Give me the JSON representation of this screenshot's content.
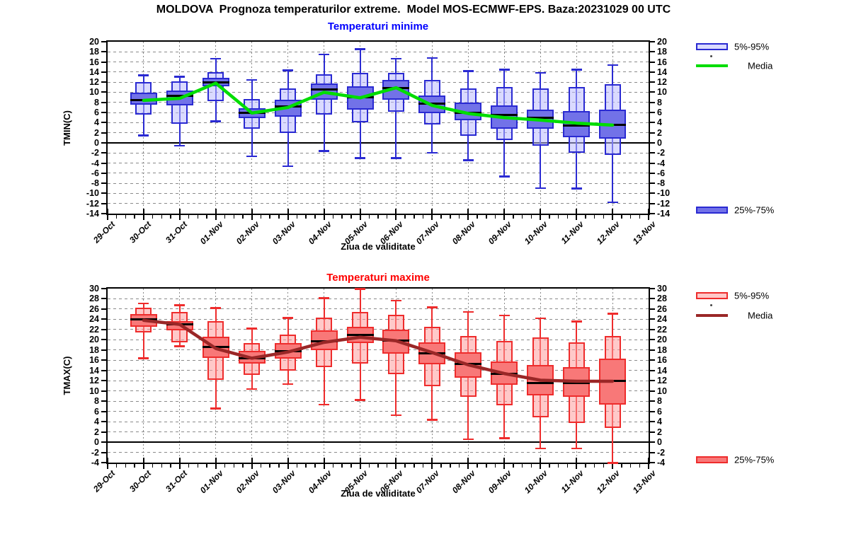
{
  "title": "MOLDOVA  Prognoza temperaturilor extreme.  Model MOS-ECMWF-EPS. Baza:20231029 00 UTC",
  "chart_data": [
    {
      "id": "tmin",
      "type": "boxplot",
      "title": "Temperaturi minime",
      "ylabel": "TMIN(C)",
      "xlabel": "Ziua de validitate",
      "ylim": [
        -14,
        20
      ],
      "ytick_step": 2,
      "grid": true,
      "legend_position": "right",
      "legend": {
        "p5_95": "5%-95%",
        "media": "Media",
        "p25_75": "25%-75%"
      },
      "colors": {
        "accent": "#0000ff",
        "box_border": "#2a2ad2",
        "box_light_fill": "#bbbbff",
        "box_dark_fill": "#7272e8",
        "mean_line": "#00dd00",
        "median_line": "#000000"
      },
      "xtick_labels": [
        "29-Oct",
        "30-Oct",
        "31-Oct",
        "01-Nov",
        "02-Nov",
        "03-Nov",
        "04-Nov",
        "05-Nov",
        "06-Nov",
        "07-Nov",
        "08-Nov",
        "09-Nov",
        "10-Nov",
        "11-Nov",
        "12-Nov",
        "13-Nov"
      ],
      "categories": [
        "30-Oct",
        "31-Oct",
        "01-Nov",
        "02-Nov",
        "03-Nov",
        "04-Nov",
        "05-Nov",
        "06-Nov",
        "07-Nov",
        "08-Nov",
        "09-Nov",
        "10-Nov",
        "11-Nov",
        "12-Nov"
      ],
      "boxes": [
        {
          "min": 1.5,
          "p5": 5.6,
          "p25": 7.5,
          "median": 8.5,
          "p75": 9.9,
          "p95": 12.0,
          "max": 13.4,
          "mean": 8.4
        },
        {
          "min": -0.5,
          "p5": 3.8,
          "p25": 7.4,
          "median": 9.3,
          "p75": 10.4,
          "p95": 12.1,
          "max": 13.1,
          "mean": 8.8
        },
        {
          "min": 4.3,
          "p5": 8.2,
          "p25": 11.2,
          "median": 12.0,
          "p75": 12.9,
          "p95": 14.0,
          "max": 16.7,
          "mean": 11.8
        },
        {
          "min": -2.6,
          "p5": 2.8,
          "p25": 4.9,
          "median": 5.9,
          "p75": 6.9,
          "p95": 8.6,
          "max": 12.5,
          "mean": 5.9
        },
        {
          "min": -4.6,
          "p5": 1.9,
          "p25": 5.1,
          "median": 7.2,
          "p75": 8.5,
          "p95": 10.8,
          "max": 14.4,
          "mean": 7.0
        },
        {
          "min": -1.6,
          "p5": 5.6,
          "p25": 8.5,
          "median": 10.5,
          "p75": 11.8,
          "p95": 13.6,
          "max": 17.5,
          "mean": 10.0
        },
        {
          "min": -3.0,
          "p5": 4.0,
          "p25": 6.6,
          "median": 9.0,
          "p75": 11.2,
          "p95": 13.8,
          "max": 18.6,
          "mean": 8.9
        },
        {
          "min": -3.0,
          "p5": 6.1,
          "p25": 8.5,
          "median": 10.9,
          "p75": 12.4,
          "p95": 13.9,
          "max": 16.7,
          "mean": 10.9
        },
        {
          "min": -1.9,
          "p5": 3.6,
          "p25": 5.9,
          "median": 7.7,
          "p75": 9.3,
          "p95": 12.5,
          "max": 16.8,
          "mean": 7.4
        },
        {
          "min": -3.4,
          "p5": 1.4,
          "p25": 4.5,
          "median": 5.9,
          "p75": 8.0,
          "p95": 10.7,
          "max": 14.2,
          "mean": 5.8
        },
        {
          "min": -6.6,
          "p5": 0.5,
          "p25": 2.8,
          "median": 5.5,
          "p75": 7.4,
          "p95": 11.0,
          "max": 14.5,
          "mean": 5.0
        },
        {
          "min": -8.9,
          "p5": -0.5,
          "p25": 2.8,
          "median": 4.9,
          "p75": 6.5,
          "p95": 10.8,
          "max": 13.9,
          "mean": 4.5
        },
        {
          "min": -9.0,
          "p5": -2.0,
          "p25": 1.1,
          "median": 3.4,
          "p75": 6.3,
          "p95": 11.0,
          "max": 14.5,
          "mean": 3.9
        },
        {
          "min": -11.7,
          "p5": -2.4,
          "p25": 0.8,
          "median": 3.5,
          "p75": 6.6,
          "p95": 11.6,
          "max": 15.4,
          "mean": 3.5
        }
      ]
    },
    {
      "id": "tmax",
      "type": "boxplot",
      "title": "Temperaturi maxime",
      "ylabel": "TMAX(C)",
      "xlabel": "Ziua de validitate",
      "ylim": [
        -4,
        30
      ],
      "ytick_step": 2,
      "grid": true,
      "legend_position": "right",
      "legend": {
        "p5_95": "5%-95%",
        "media": "Media",
        "p25_75": "25%-75%"
      },
      "colors": {
        "accent": "#ff0000",
        "box_border": "#ee2c2c",
        "box_light_fill": "#ff9d9d",
        "box_dark_fill": "#f87878",
        "mean_line": "#9a2727",
        "median_line": "#000000"
      },
      "xtick_labels": [
        "29-Oct",
        "30-Oct",
        "31-Oct",
        "01-Nov",
        "02-Nov",
        "03-Nov",
        "04-Nov",
        "05-Nov",
        "06-Nov",
        "07-Nov",
        "08-Nov",
        "09-Nov",
        "10-Nov",
        "11-Nov",
        "12-Nov",
        "13-Nov"
      ],
      "categories": [
        "30-Oct",
        "31-Oct",
        "01-Nov",
        "02-Nov",
        "03-Nov",
        "04-Nov",
        "05-Nov",
        "06-Nov",
        "07-Nov",
        "08-Nov",
        "09-Nov",
        "10-Nov",
        "11-Nov",
        "12-Nov"
      ],
      "boxes": [
        {
          "min": 16.4,
          "p5": 21.4,
          "p25": 22.6,
          "median": 24.0,
          "p75": 25.0,
          "p95": 26.2,
          "max": 27.1,
          "mean": 23.8
        },
        {
          "min": 18.8,
          "p5": 19.5,
          "p25": 21.9,
          "median": 23.0,
          "p75": 23.7,
          "p95": 25.5,
          "max": 26.8,
          "mean": 23.0
        },
        {
          "min": 6.6,
          "p5": 12.2,
          "p25": 16.4,
          "median": 18.6,
          "p75": 20.6,
          "p95": 23.7,
          "max": 26.2,
          "mean": 18.3
        },
        {
          "min": 10.4,
          "p5": 13.2,
          "p25": 15.4,
          "median": 16.4,
          "p75": 17.9,
          "p95": 19.4,
          "max": 22.2,
          "mean": 16.4
        },
        {
          "min": 11.4,
          "p5": 14.0,
          "p25": 16.3,
          "median": 17.8,
          "p75": 19.4,
          "p95": 21.0,
          "max": 24.3,
          "mean": 17.6
        },
        {
          "min": 7.4,
          "p5": 14.6,
          "p25": 18.0,
          "median": 19.7,
          "p75": 21.8,
          "p95": 24.3,
          "max": 28.2,
          "mean": 19.5
        },
        {
          "min": 8.3,
          "p5": 15.4,
          "p25": 19.3,
          "median": 20.9,
          "p75": 22.5,
          "p95": 25.5,
          "max": 30.0,
          "mean": 20.5
        },
        {
          "min": 5.3,
          "p5": 13.3,
          "p25": 17.3,
          "median": 19.8,
          "p75": 22.0,
          "p95": 24.9,
          "max": 27.7,
          "mean": 19.8
        },
        {
          "min": 4.4,
          "p5": 10.9,
          "p25": 15.2,
          "median": 17.3,
          "p75": 19.5,
          "p95": 22.6,
          "max": 26.4,
          "mean": 17.5
        },
        {
          "min": 0.6,
          "p5": 8.8,
          "p25": 12.6,
          "median": 15.3,
          "p75": 17.6,
          "p95": 20.8,
          "max": 25.5,
          "mean": 15.1
        },
        {
          "min": 0.8,
          "p5": 7.2,
          "p25": 11.2,
          "median": 13.3,
          "p75": 15.8,
          "p95": 19.8,
          "max": 24.8,
          "mean": 13.4
        },
        {
          "min": -1.2,
          "p5": 4.9,
          "p25": 9.1,
          "median": 11.6,
          "p75": 15.1,
          "p95": 20.5,
          "max": 24.2,
          "mean": 12.1
        },
        {
          "min": -1.2,
          "p5": 3.7,
          "p25": 8.8,
          "median": 11.6,
          "p75": 14.7,
          "p95": 19.5,
          "max": 23.6,
          "mean": 11.9
        },
        {
          "min": -4.0,
          "p5": 2.8,
          "p25": 7.4,
          "median": 12.0,
          "p75": 16.3,
          "p95": 20.7,
          "max": 25.1,
          "mean": 11.9
        }
      ]
    }
  ]
}
